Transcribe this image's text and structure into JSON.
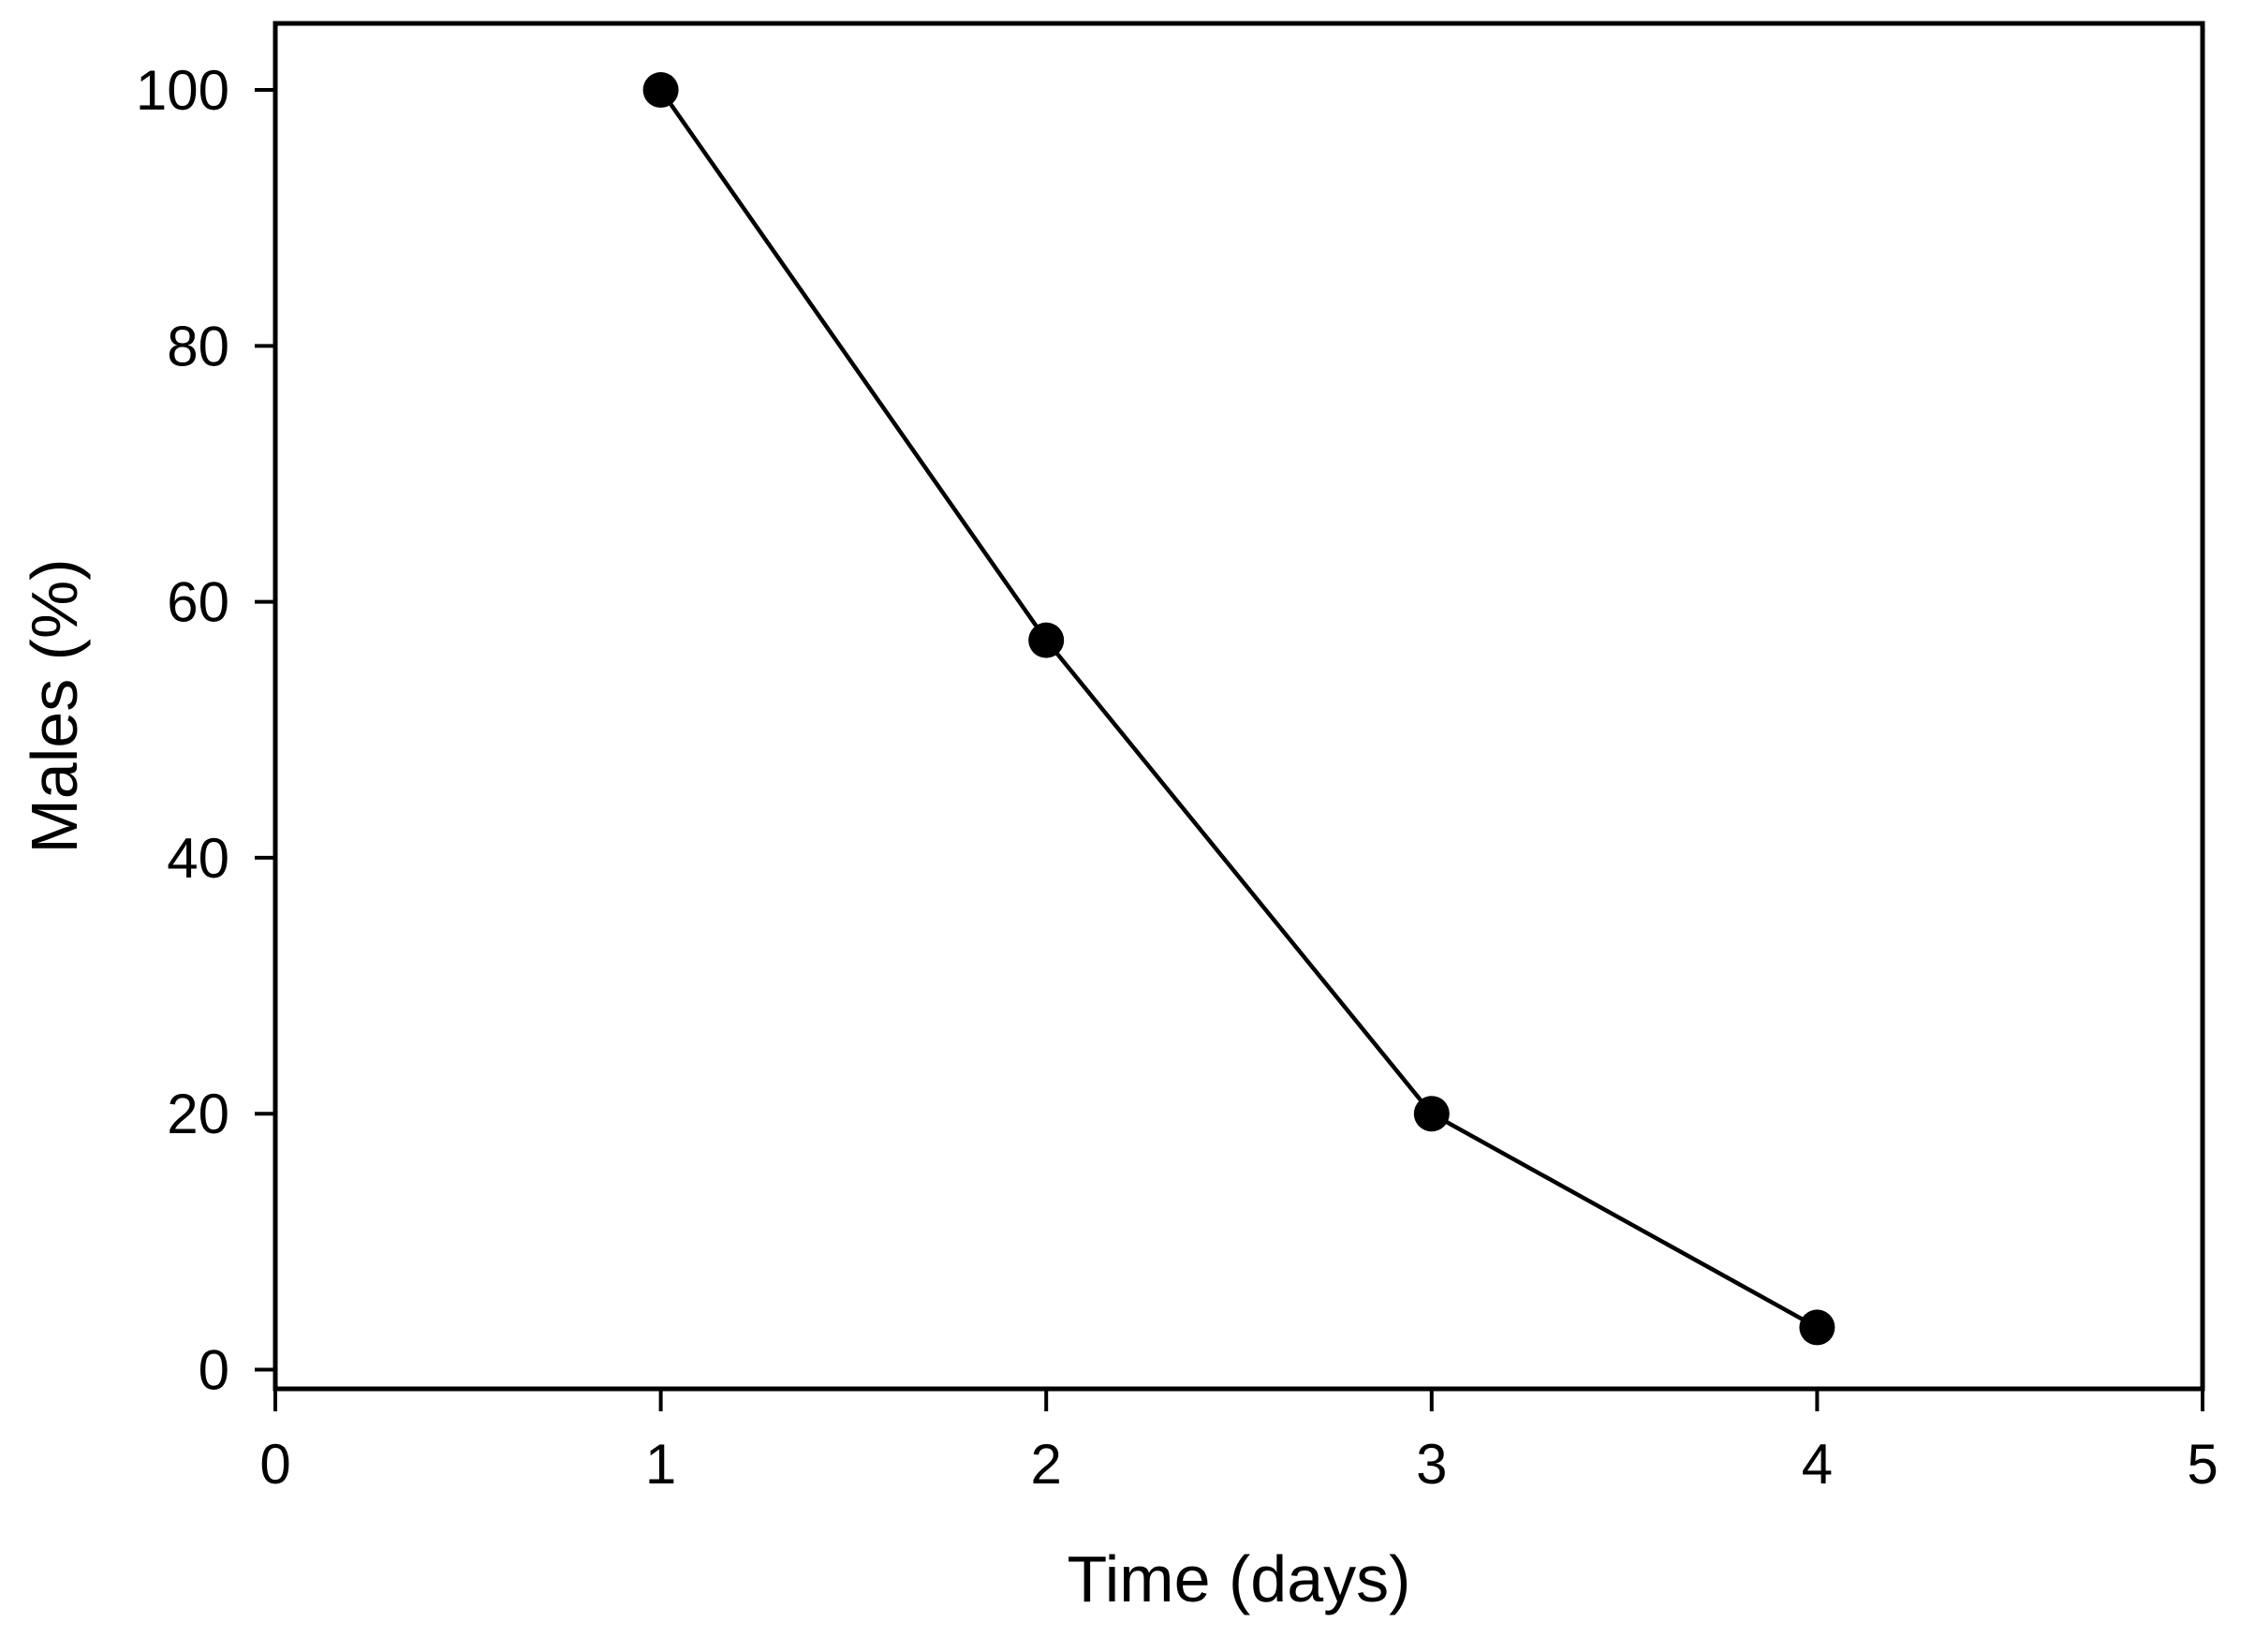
{
  "figure": {
    "background_color": "#ffffff",
    "foreground_color": "#000000"
  },
  "chart_data": {
    "type": "line",
    "title": "",
    "xlabel": "Time (days)",
    "ylabel": "Males (%)",
    "x": [
      1,
      2,
      3,
      4
    ],
    "y": [
      100,
      57,
      20,
      3.3
    ],
    "series": [
      {
        "name": "Males",
        "x": [
          1,
          2,
          3,
          4
        ],
        "values": [
          100,
          57,
          20,
          3.3
        ]
      }
    ],
    "x_ticks": [
      0,
      1,
      2,
      3,
      4,
      5
    ],
    "y_ticks": [
      0,
      20,
      40,
      60,
      80,
      100
    ],
    "xlim": [
      0,
      5
    ],
    "ylim": [
      -1.5,
      105.2
    ],
    "grid": false,
    "legend_position": "none",
    "marker": "filled-circle",
    "line_color": "#000000",
    "marker_color": "#000000"
  }
}
